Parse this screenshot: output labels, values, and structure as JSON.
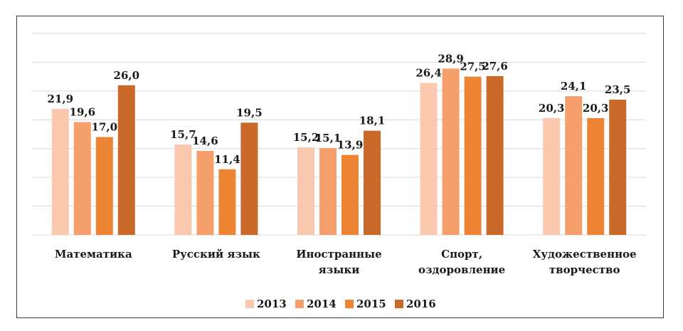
{
  "chart_data": {
    "type": "bar",
    "categories": [
      [
        "Математика"
      ],
      [
        "Русский язык"
      ],
      [
        "Иностранные",
        "языки"
      ],
      [
        "Спорт,",
        "оздоровление"
      ],
      [
        "Художественное",
        "творчество"
      ]
    ],
    "series": [
      {
        "name": "2013",
        "color": "#f9c8ae",
        "values": [
          21.9,
          15.7,
          15.2,
          26.4,
          20.3
        ],
        "labels": [
          "21,9",
          "15,7",
          "15,2",
          "26,4",
          "20,3"
        ]
      },
      {
        "name": "2014",
        "color": "#f5a06c",
        "values": [
          19.6,
          14.6,
          15.1,
          28.9,
          24.1
        ],
        "labels": [
          "19,6",
          "14,6",
          "15,1",
          "28,9",
          "24,1"
        ]
      },
      {
        "name": "2015",
        "color": "#ee8535",
        "values": [
          17.0,
          11.4,
          13.9,
          27.5,
          20.3
        ],
        "labels": [
          "17,0",
          "11,4",
          "13,9",
          "27,5",
          "20,3"
        ]
      },
      {
        "name": "2016",
        "color": "#c96a2b",
        "values": [
          26.0,
          19.5,
          18.1,
          27.6,
          23.5
        ],
        "labels": [
          "26,0",
          "19,5",
          "18,1",
          "27,6",
          "23,5"
        ]
      }
    ],
    "ylim": [
      0,
      35
    ],
    "grid": true,
    "legend_position": "bottom"
  }
}
